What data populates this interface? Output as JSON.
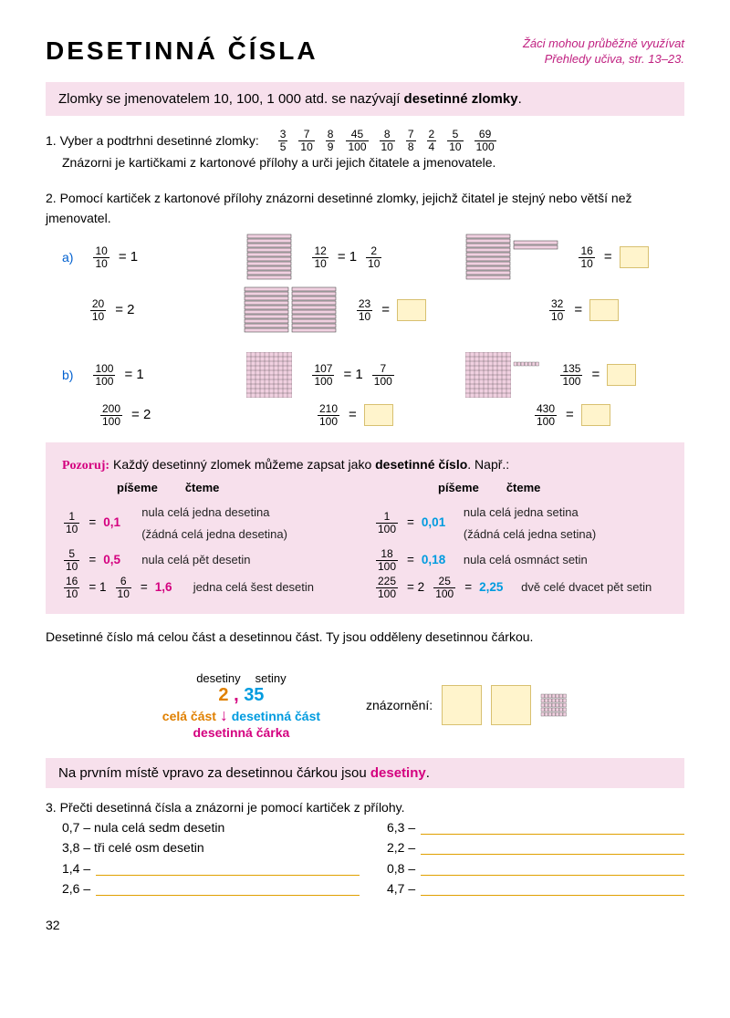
{
  "title": "DESETINNÁ ČÍSLA",
  "top_note_l1": "Žáci mohou průběžně využívat",
  "top_note_l2": "Přehledy učiva, str. 13–23.",
  "pink1_a": "Zlomky se jmenovatelem 10, 100, 1 000 atd. se nazývají ",
  "pink1_b": "desetinné zlomky",
  "pink1_c": ".",
  "ex1_label": "1. Vyber a podtrhni desetinné zlomky:",
  "ex1_fracs": [
    {
      "n": "3",
      "d": "5"
    },
    {
      "n": "7",
      "d": "10"
    },
    {
      "n": "8",
      "d": "9"
    },
    {
      "n": "45",
      "d": "100"
    },
    {
      "n": "8",
      "d": "10"
    },
    {
      "n": "7",
      "d": "8"
    },
    {
      "n": "2",
      "d": "4"
    },
    {
      "n": "5",
      "d": "10"
    },
    {
      "n": "69",
      "d": "100"
    }
  ],
  "ex1_line2": "Znázorni je kartičkami z kartonové přílohy a urči jejich čitatele a jmenovatele.",
  "ex2_label": "2. Pomocí kartiček z kartonové přílohy znázorni desetinné zlomky, jejichž čitatel je stejný nebo větší než jmenovatel.",
  "ex2a": "a)",
  "ex2b": "b)",
  "r2a": [
    {
      "f": {
        "n": "10",
        "d": "10"
      },
      "eq": "= 1"
    },
    {
      "f": {
        "n": "12",
        "d": "10"
      },
      "eq": "= 1",
      "mix": {
        "n": "2",
        "d": "10"
      }
    },
    {
      "f": {
        "n": "16",
        "d": "10"
      },
      "eq": "=",
      "blank": true
    }
  ],
  "r2a2": [
    {
      "f": {
        "n": "20",
        "d": "10"
      },
      "eq": "= 2"
    },
    {
      "f": {
        "n": "23",
        "d": "10"
      },
      "eq": "=",
      "blank": true
    },
    {
      "f": {
        "n": "32",
        "d": "10"
      },
      "eq": "=",
      "blank": true
    }
  ],
  "r2b": [
    {
      "f": {
        "n": "100",
        "d": "100"
      },
      "eq": "= 1"
    },
    {
      "f": {
        "n": "107",
        "d": "100"
      },
      "eq": "= 1",
      "mix": {
        "n": "7",
        "d": "100"
      }
    },
    {
      "f": {
        "n": "135",
        "d": "100"
      },
      "eq": "=",
      "blank": true
    }
  ],
  "r2b2": [
    {
      "f": {
        "n": "200",
        "d": "100"
      },
      "eq": "= 2"
    },
    {
      "f": {
        "n": "210",
        "d": "100"
      },
      "eq": "=",
      "blank": true
    },
    {
      "f": {
        "n": "430",
        "d": "100"
      },
      "eq": "=",
      "blank": true
    }
  ],
  "obs_title_a": "Pozoruj:",
  "obs_title_b": " Každý desetinný zlomek můžeme zapsat jako ",
  "obs_title_c": "desetinné číslo",
  "obs_title_d": ". Např.:",
  "hdr_write": "píšeme",
  "hdr_read": "čteme",
  "obs_left": [
    {
      "f": {
        "n": "1",
        "d": "10"
      },
      "v": "0,1",
      "t1": "nula celá jedna desetina",
      "t2": "(žádná celá jedna desetina)"
    },
    {
      "f": {
        "n": "5",
        "d": "10"
      },
      "v": "0,5",
      "t1": "nula celá pět desetin"
    },
    {
      "f": {
        "n": "16",
        "d": "10"
      },
      "mix": {
        "w": "1",
        "n": "6",
        "d": "10"
      },
      "v": "1,6",
      "t1": "jedna celá šest desetin"
    }
  ],
  "obs_right": [
    {
      "f": {
        "n": "1",
        "d": "100"
      },
      "v": "0,01",
      "t1": "nula celá jedna setina",
      "t2": "(žádná celá jedna setina)"
    },
    {
      "f": {
        "n": "18",
        "d": "100"
      },
      "v": "0,18",
      "t1": "nula celá osmnáct setin"
    },
    {
      "f": {
        "n": "225",
        "d": "100"
      },
      "mix": {
        "w": "2",
        "n": "25",
        "d": "100"
      },
      "v": "2,25",
      "t1": "dvě celé dvacet pět setin"
    }
  ],
  "mid_text": "Desetinné číslo má celou část a desetinnou část. Ty jsou odděleny desetinnou čárkou.",
  "diag": {
    "desetiny": "desetiny",
    "setiny": "setiny",
    "whole": "2",
    "comma": ",",
    "dec": "35",
    "cela": "celá část",
    "desetinna": "desetinná část",
    "carka": "desetinná čárka",
    "znaz": "znázornění:"
  },
  "pink3_a": "Na prvním místě vpravo za desetinnou čárkou jsou ",
  "pink3_b": "desetiny",
  "pink3_c": ".",
  "ex3_label": "3. Přečti desetinná čísla a znázorni je pomocí kartiček z přílohy.",
  "ex3_left": [
    {
      "n": "0,7",
      "t": "– nula celá sedm desetin"
    },
    {
      "n": "3,8",
      "t": "– tři celé osm desetin"
    },
    {
      "n": "1,4",
      "t": "–",
      "blank": true
    },
    {
      "n": "2,6",
      "t": "–",
      "blank": true
    }
  ],
  "ex3_right": [
    {
      "n": "6,3",
      "t": "–",
      "blank": true
    },
    {
      "n": "2,2",
      "t": "–",
      "blank": true
    },
    {
      "n": "0,8",
      "t": "–",
      "blank": true
    },
    {
      "n": "4,7",
      "t": "–",
      "blank": true
    }
  ],
  "page": "32"
}
